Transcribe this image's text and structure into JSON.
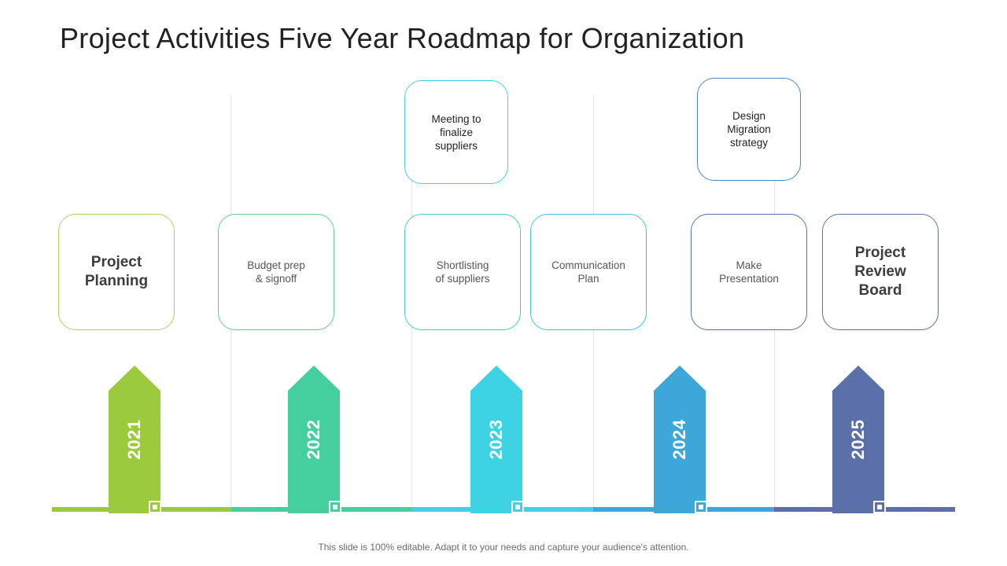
{
  "title": "Project Activities Five Year Roadmap for Organization",
  "years": [
    "2021",
    "2022",
    "2023",
    "2024",
    "2025"
  ],
  "colors": {
    "y2021": "#9bcb3c",
    "y2022": "#45cf9e",
    "y2023": "#3ed3e4",
    "y2024": "#3ea7d9",
    "y2025": "#5b6fa8"
  },
  "cards": {
    "project_planning": "Project\nPlanning",
    "budget_prep": "Budget prep\n& signoff",
    "meeting_suppliers": "Meeting to\nfinalize\nsuppliers",
    "shortlisting": "Shortlisting\nof suppliers",
    "communication_plan": "Communication\nPlan",
    "design_migration": "Design\nMigration\nstrategy",
    "make_presentation": "Make\nPresentation",
    "project_review": "Project\nReview\nBoard"
  },
  "footer": "This slide is 100% editable. Adapt it to your needs and capture your audience's attention."
}
